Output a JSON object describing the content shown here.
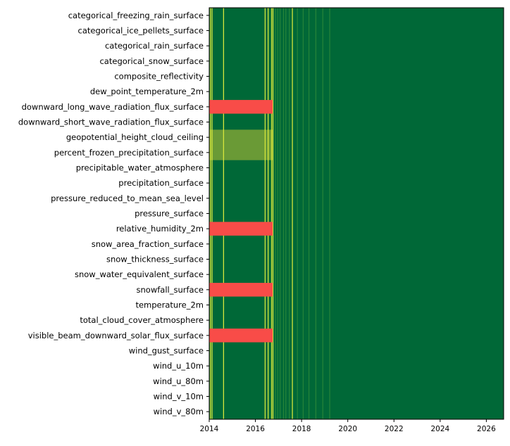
{
  "chart_data": {
    "type": "heatmap",
    "title": "",
    "xlabel": "",
    "ylabel": "",
    "xlim": [
      2014.0,
      2026.75
    ],
    "x_ticks": [
      2014,
      2016,
      2018,
      2020,
      2022,
      2024,
      2026
    ],
    "x_tick_labels": [
      "2014",
      "2016",
      "2018",
      "2020",
      "2022",
      "2024",
      "2026"
    ],
    "variables": [
      "categorical_freezing_rain_surface",
      "categorical_ice_pellets_surface",
      "categorical_rain_surface",
      "categorical_snow_surface",
      "composite_reflectivity",
      "dew_point_temperature_2m",
      "downward_long_wave_radiation_flux_surface",
      "downward_short_wave_radiation_flux_surface",
      "geopotential_height_cloud_ceiling",
      "percent_frozen_precipitation_surface",
      "precipitable_water_atmosphere",
      "precipitation_surface",
      "pressure_reduced_to_mean_sea_level",
      "pressure_surface",
      "relative_humidity_2m",
      "snow_area_fraction_surface",
      "snow_thickness_surface",
      "snow_water_equivalent_surface",
      "snowfall_surface",
      "temperature_2m",
      "total_cloud_cover_atmosphere",
      "visible_beam_downward_solar_flux_surface",
      "wind_gust_surface",
      "wind_u_10m",
      "wind_u_80m",
      "wind_v_10m",
      "wind_v_80m"
    ],
    "colors": {
      "available": "#006837",
      "partial": "#6a9a36",
      "missing": "#f84c48",
      "gap_stripe": "#d6e63c",
      "minor_stripe": "#2e8a3a"
    },
    "missing_blocks": [
      {
        "variable": "downward_long_wave_radiation_flux_surface",
        "start": 2014.0,
        "end": 2016.75
      },
      {
        "variable": "relative_humidity_2m",
        "start": 2014.0,
        "end": 2016.75
      },
      {
        "variable": "snowfall_surface",
        "start": 2014.0,
        "end": 2016.75
      },
      {
        "variable": "visible_beam_downward_solar_flux_surface",
        "start": 2014.0,
        "end": 2016.75
      }
    ],
    "partial_blocks": [
      {
        "variables": [
          "geopotential_height_cloud_ceiling",
          "percent_frozen_precipitation_surface"
        ],
        "start": 2014.0,
        "end": 2016.75
      }
    ],
    "gap_dates": [
      2014.05,
      2014.12,
      2014.62,
      2016.42,
      2016.55,
      2016.7,
      2016.76,
      2017.6
    ],
    "sparse_gap_dates": [
      2016.85,
      2016.95,
      2017.05,
      2017.2,
      2017.3,
      2017.45,
      2017.8,
      2018.05,
      2018.3,
      2018.6,
      2018.9,
      2019.2
    ]
  }
}
